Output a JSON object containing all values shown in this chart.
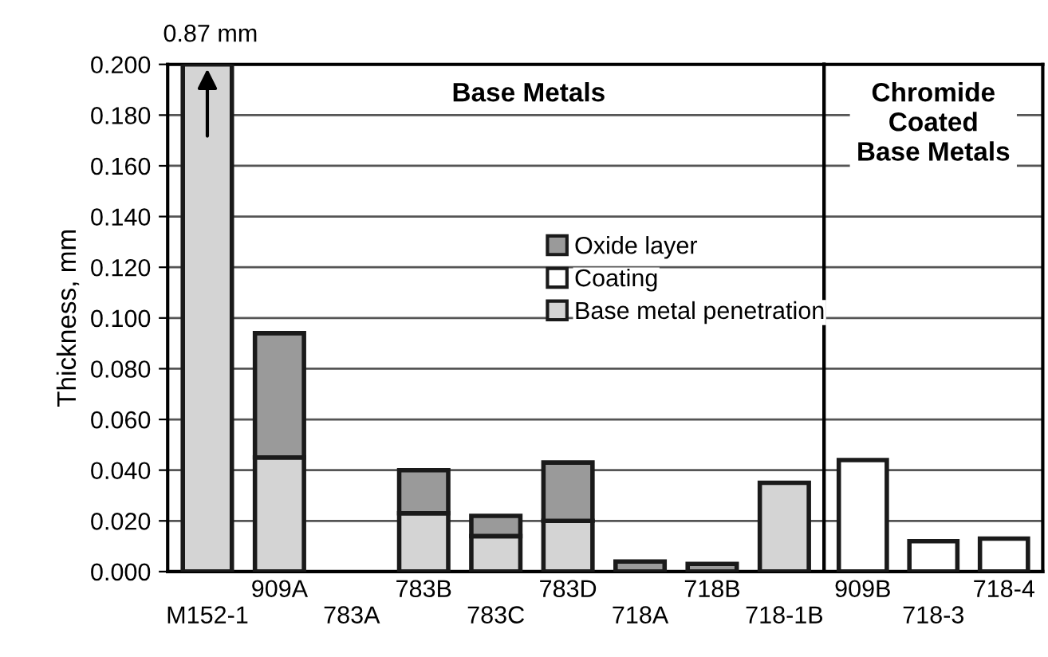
{
  "chart_data": [
    {
      "type": "bar",
      "stacked": true,
      "categories": [
        "M152-1",
        "909A",
        "783A",
        "783B",
        "783C",
        "783D",
        "718A",
        "718B",
        "718-1B"
      ],
      "series": [
        {
          "name": "Base metal penetration",
          "color": "#d4d4d4",
          "values": [
            0.2,
            0.045,
            null,
            0.023,
            0.014,
            0.02,
            null,
            null,
            0.035
          ]
        },
        {
          "name": "Oxide layer",
          "color": "#9a9a9a",
          "values": [
            null,
            0.049,
            null,
            0.017,
            0.008,
            0.023,
            0.004,
            0.003,
            null
          ]
        }
      ],
      "ylabel": "Thickness, mm",
      "ylim": [
        0,
        0.2
      ],
      "yticks": [
        {
          "value": 0,
          "label": "0.000"
        },
        {
          "value": 0.02,
          "label": "0.020"
        },
        {
          "value": 0.04,
          "label": "0.040"
        },
        {
          "value": 0.06,
          "label": "0.060"
        },
        {
          "value": 0.08,
          "label": "0.080"
        },
        {
          "value": 0.1,
          "label": "0.100"
        },
        {
          "value": 0.12,
          "label": "0.120"
        },
        {
          "value": 0.14,
          "label": "0.140"
        },
        {
          "value": 0.16,
          "label": "0.160"
        },
        {
          "value": 0.18,
          "label": "0.180"
        },
        {
          "value": 0.2,
          "label": "0.200"
        }
      ],
      "grid": "y",
      "legend": "center",
      "annotations": [
        {
          "text": "0.87 mm",
          "x": "M152-1",
          "y": 0.2
        },
        "Base Metals"
      ]
    },
    {
      "type": "bar",
      "categories": [
        "909B",
        "718-3",
        "718-4"
      ],
      "series": [
        {
          "name": "Coating",
          "color": "#ffffff",
          "values": [
            0.044,
            0.012,
            0.013
          ]
        }
      ],
      "ylim": [
        0,
        0.2
      ],
      "yticks": [
        {
          "value": 0,
          "label": null
        },
        {
          "value": 0.02,
          "label": null
        },
        {
          "value": 0.04,
          "label": null
        },
        {
          "value": 0.06,
          "label": null
        },
        {
          "value": 0.08,
          "label": null
        },
        {
          "value": 0.1,
          "label": null
        },
        {
          "value": 0.12,
          "label": null
        },
        {
          "value": 0.14,
          "label": null
        },
        {
          "value": 0.16,
          "label": null
        },
        {
          "value": 0.18,
          "label": null
        },
        {
          "value": 0.2,
          "label": null
        }
      ],
      "tick_labels": "x",
      "grid": "y",
      "annotations": [
        "Chromide\nCoated\nBase Metals"
      ]
    }
  ]
}
